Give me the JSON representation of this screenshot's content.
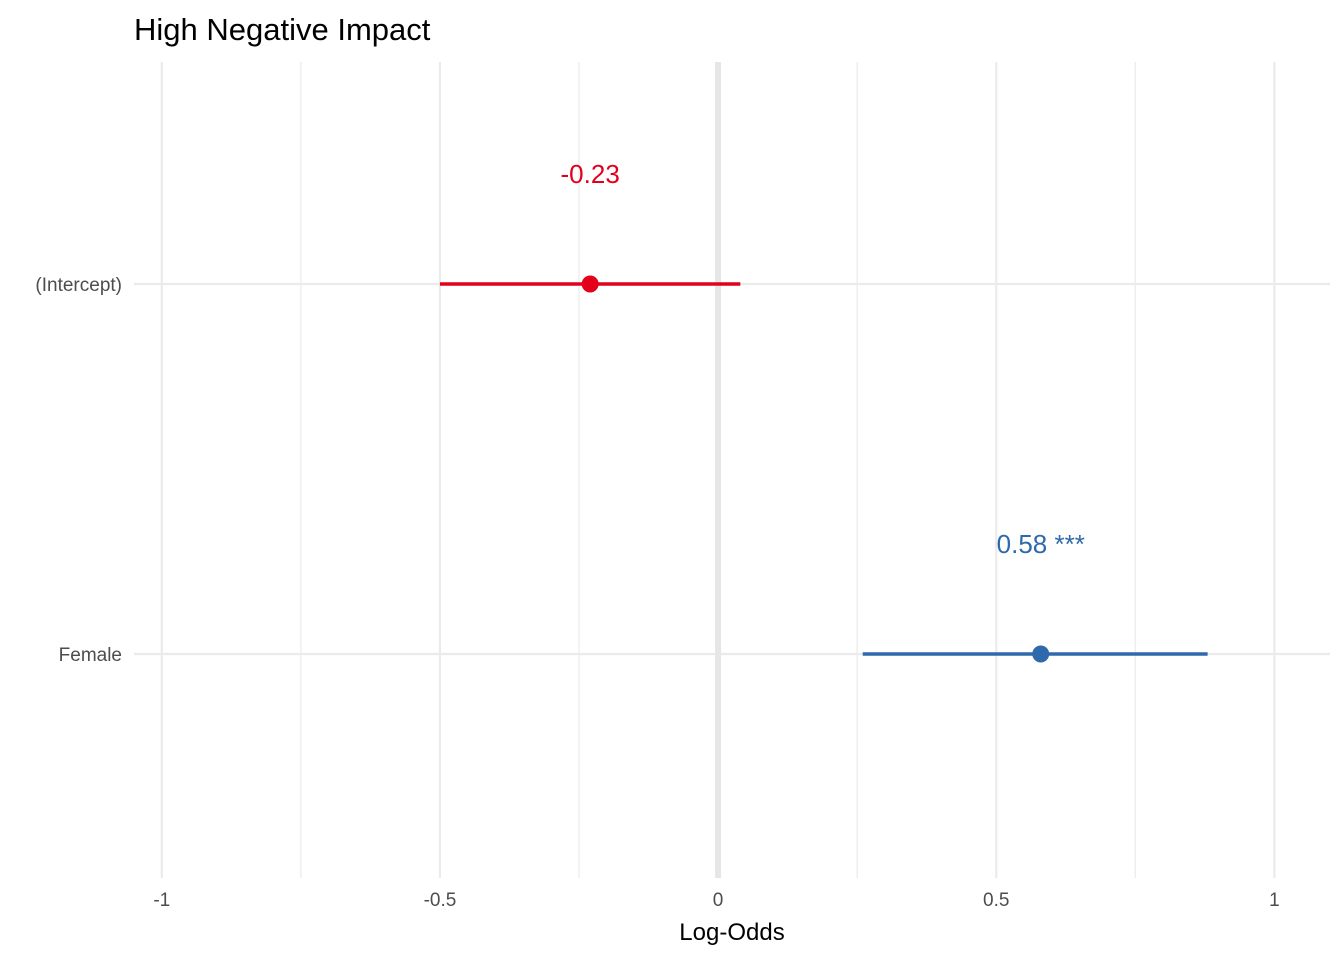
{
  "chart_data": {
    "type": "forest",
    "title": "High Negative Impact",
    "xlabel": "Log-Odds",
    "ylabel": "",
    "xlim": [
      -1.05,
      1.1
    ],
    "x_ticks": [
      -1,
      -0.5,
      0,
      0.5,
      1
    ],
    "x_tick_labels": [
      "-1",
      "-0.5",
      "0",
      "0.5",
      "1"
    ],
    "x_minor_ticks": [
      -0.75,
      -0.25,
      0.25,
      0.75
    ],
    "reference_line": 0,
    "grid": true,
    "legend": "none",
    "terms": [
      {
        "label": "(Intercept)",
        "estimate": -0.23,
        "ci_low": -0.5,
        "ci_high": 0.04,
        "annotation": "-0.23",
        "color": "#e3001b"
      },
      {
        "label": "Female",
        "estimate": 0.58,
        "ci_low": 0.26,
        "ci_high": 0.88,
        "annotation": "0.58 ***",
        "color": "#2e6aab"
      }
    ]
  }
}
